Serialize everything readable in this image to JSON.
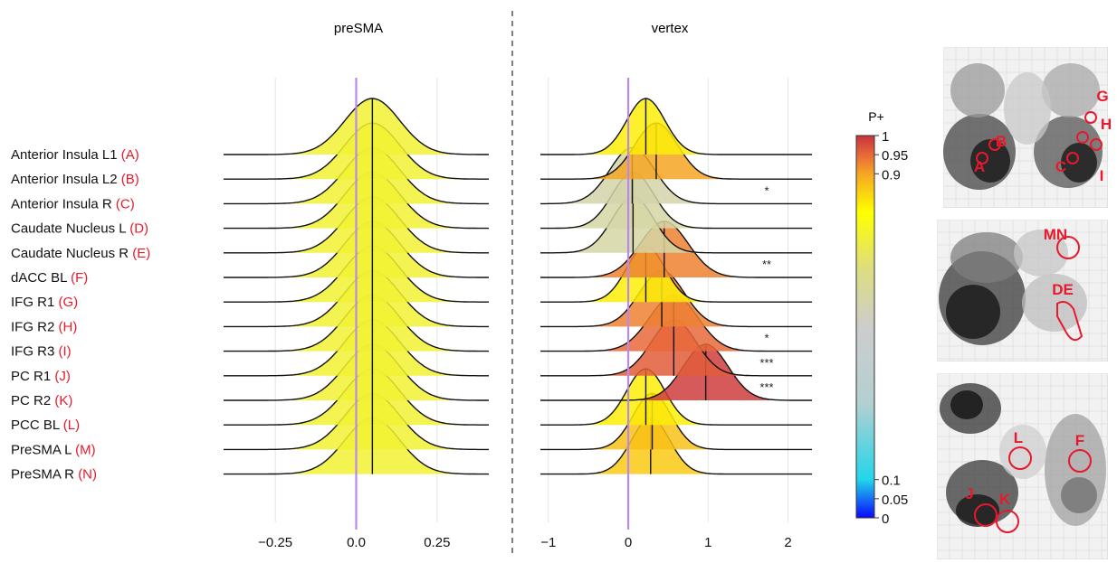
{
  "chart_data": {
    "type": "ridgeline",
    "regions": [
      {
        "label": "Anterior Insula L1",
        "code": "(A)"
      },
      {
        "label": "Anterior Insula L2",
        "code": " (B)"
      },
      {
        "label": "Anterior Insula R",
        "code": "(C)"
      },
      {
        "label": "Caudate Nucleus L",
        "code": "(D)"
      },
      {
        "label": "Caudate Nucleus R",
        "code": "(E)"
      },
      {
        "label": "dACC BL",
        "code": "(F)"
      },
      {
        "label": "IFG R1",
        "code": "(G)"
      },
      {
        "label": "IFG R2",
        "code": "(H)"
      },
      {
        "label": "IFG R3",
        "code": "(I)"
      },
      {
        "label": "PC R1",
        "code": "(J)"
      },
      {
        "label": "PC R2",
        "code": "(K)"
      },
      {
        "label": "PCC BL",
        "code": "(L)"
      },
      {
        "label": "PreSMA L",
        "code": "(M)"
      },
      {
        "label": "PreSMA R",
        "code": "(N)"
      }
    ],
    "panels": [
      {
        "title": "preSMA",
        "xlim": [
          -0.41,
          0.41
        ],
        "ticks": [
          -0.25,
          0.0,
          0.25
        ],
        "tick_labels": [
          "−0.25",
          "0.0",
          "0.25"
        ],
        "zero_line": 0.0,
        "distributions": [
          {
            "mean": 0.05,
            "sd": 0.085,
            "p_plus": 0.74,
            "sig": ""
          },
          {
            "mean": 0.05,
            "sd": 0.085,
            "p_plus": 0.74,
            "sig": ""
          },
          {
            "mean": 0.05,
            "sd": 0.085,
            "p_plus": 0.74,
            "sig": ""
          },
          {
            "mean": 0.05,
            "sd": 0.085,
            "p_plus": 0.74,
            "sig": ""
          },
          {
            "mean": 0.05,
            "sd": 0.085,
            "p_plus": 0.74,
            "sig": ""
          },
          {
            "mean": 0.05,
            "sd": 0.085,
            "p_plus": 0.74,
            "sig": ""
          },
          {
            "mean": 0.05,
            "sd": 0.085,
            "p_plus": 0.74,
            "sig": ""
          },
          {
            "mean": 0.05,
            "sd": 0.085,
            "p_plus": 0.74,
            "sig": ""
          },
          {
            "mean": 0.05,
            "sd": 0.085,
            "p_plus": 0.74,
            "sig": ""
          },
          {
            "mean": 0.05,
            "sd": 0.085,
            "p_plus": 0.74,
            "sig": ""
          },
          {
            "mean": 0.05,
            "sd": 0.085,
            "p_plus": 0.74,
            "sig": ""
          },
          {
            "mean": 0.05,
            "sd": 0.085,
            "p_plus": 0.74,
            "sig": ""
          },
          {
            "mean": 0.05,
            "sd": 0.085,
            "p_plus": 0.74,
            "sig": ""
          },
          {
            "mean": 0.05,
            "sd": 0.085,
            "p_plus": 0.74,
            "sig": ""
          }
        ]
      },
      {
        "title": "vertex",
        "xlim": [
          -1.1,
          2.3
        ],
        "ticks": [
          -1,
          0,
          1,
          2
        ],
        "tick_labels": [
          "−1",
          "0",
          "1",
          "2"
        ],
        "zero_line": 0.0,
        "distributions": [
          {
            "mean": 0.22,
            "sd": 0.24,
            "p_plus": 0.82,
            "sig": ""
          },
          {
            "mean": 0.35,
            "sd": 0.27,
            "p_plus": 0.9,
            "sig": ""
          },
          {
            "mean": 0.05,
            "sd": 0.28,
            "p_plus": 0.57,
            "sig": "*"
          },
          {
            "mean": 0.06,
            "sd": 0.26,
            "p_plus": 0.58,
            "sig": ""
          },
          {
            "mean": 0.06,
            "sd": 0.26,
            "p_plus": 0.58,
            "sig": ""
          },
          {
            "mean": 0.45,
            "sd": 0.3,
            "p_plus": 0.93,
            "sig": "**"
          },
          {
            "mean": 0.22,
            "sd": 0.24,
            "p_plus": 0.82,
            "sig": ""
          },
          {
            "mean": 0.42,
            "sd": 0.28,
            "p_plus": 0.93,
            "sig": ""
          },
          {
            "mean": 0.57,
            "sd": 0.3,
            "p_plus": 0.95,
            "sig": "*"
          },
          {
            "mean": 0.57,
            "sd": 0.28,
            "p_plus": 0.96,
            "sig": "***"
          },
          {
            "mean": 0.97,
            "sd": 0.28,
            "p_plus": 0.99,
            "sig": "***"
          },
          {
            "mean": 0.22,
            "sd": 0.24,
            "p_plus": 0.82,
            "sig": ""
          },
          {
            "mean": 0.3,
            "sd": 0.24,
            "p_plus": 0.87,
            "sig": ""
          },
          {
            "mean": 0.28,
            "sd": 0.24,
            "p_plus": 0.86,
            "sig": ""
          }
        ]
      }
    ],
    "colorbar": {
      "title": "P+",
      "range": [
        0,
        1
      ],
      "stops": [
        {
          "value": 0.0,
          "color": "#0a0aff"
        },
        {
          "value": 0.1,
          "color": "#22d6ea"
        },
        {
          "value": 0.3,
          "color": "#b4cfd1"
        },
        {
          "value": 0.5,
          "color": "#cdcdcd"
        },
        {
          "value": 0.65,
          "color": "#dddd80"
        },
        {
          "value": 0.8,
          "color": "#ffff00"
        },
        {
          "value": 0.9,
          "color": "#f5a623"
        },
        {
          "value": 0.95,
          "color": "#e8683a"
        },
        {
          "value": 1.0,
          "color": "#c8323c"
        }
      ],
      "ticks": [
        {
          "value": 1,
          "label": "1"
        },
        {
          "value": 0.95,
          "label": "0.95"
        },
        {
          "value": 0.9,
          "label": "0.9"
        },
        {
          "value": 0.1,
          "label": "0.1"
        },
        {
          "value": 0.05,
          "label": "0.05"
        },
        {
          "value": 0,
          "label": "0"
        }
      ]
    },
    "brain_maps": [
      {
        "view": "coronal",
        "labels": [
          "A",
          "B",
          "C",
          "G",
          "H",
          "I"
        ]
      },
      {
        "view": "sagittal",
        "labels": [
          "MN",
          "DE"
        ]
      },
      {
        "view": "axial",
        "labels": [
          "L",
          "F",
          "J",
          "K"
        ]
      }
    ],
    "colors": {
      "label_code": "#e8192c",
      "zero_line": "#b889f0",
      "roi_marker": "#e8192c",
      "divider": "#555555"
    }
  }
}
